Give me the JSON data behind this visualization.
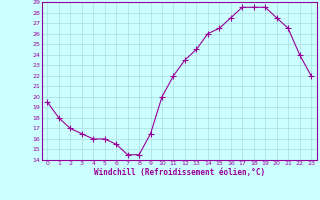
{
  "x": [
    0,
    1,
    2,
    3,
    4,
    5,
    6,
    7,
    8,
    9,
    10,
    11,
    12,
    13,
    14,
    15,
    16,
    17,
    18,
    19,
    20,
    21,
    22,
    23
  ],
  "y": [
    19.5,
    18.0,
    17.0,
    16.5,
    16.0,
    16.0,
    15.5,
    14.5,
    14.5,
    16.5,
    20.0,
    22.0,
    23.5,
    24.5,
    26.0,
    26.5,
    27.5,
    28.5,
    28.5,
    28.5,
    27.5,
    26.5,
    24.0,
    22.0
  ],
  "line_color": "#990099",
  "marker": "+",
  "marker_size": 4,
  "bg_color": "#ccffff",
  "grid_color": "#aadddd",
  "ylim": [
    14,
    29
  ],
  "xlim": [
    -0.5,
    23.5
  ],
  "yticks": [
    14,
    15,
    16,
    17,
    18,
    19,
    20,
    21,
    22,
    23,
    24,
    25,
    26,
    27,
    28,
    29
  ],
  "xticks": [
    0,
    1,
    2,
    3,
    4,
    5,
    6,
    7,
    8,
    9,
    10,
    11,
    12,
    13,
    14,
    15,
    16,
    17,
    18,
    19,
    20,
    21,
    22,
    23
  ],
  "xlabel": "Windchill (Refroidissement éolien,°C)",
  "xlabel_color": "#990099",
  "tick_color": "#990099",
  "axis_color": "#990099"
}
